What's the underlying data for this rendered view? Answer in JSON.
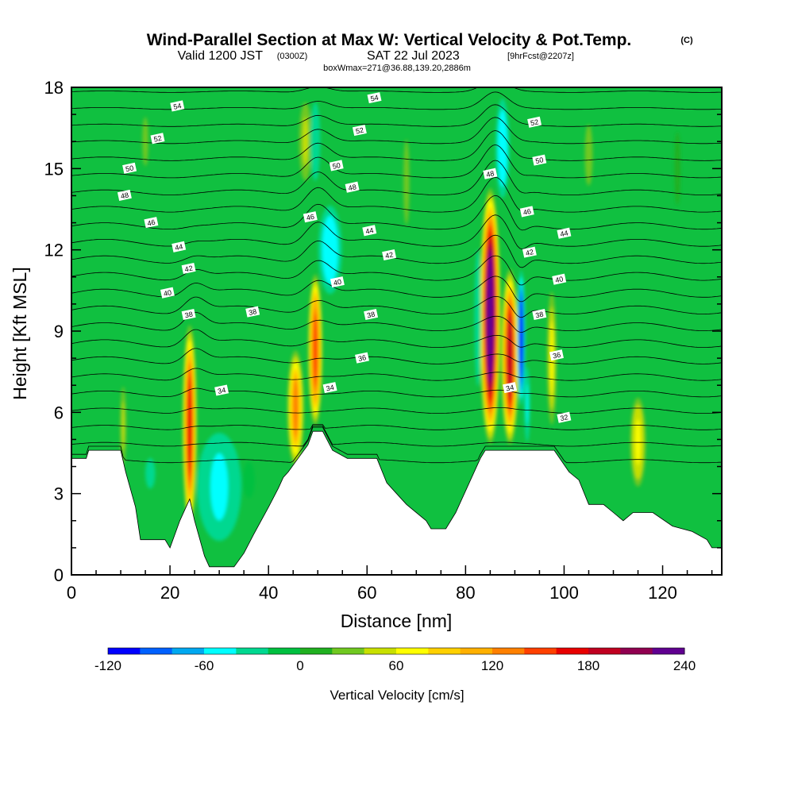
{
  "title": {
    "main": "Wind-Parallel Section at Max W: Vertical Velocity & Pot.Temp.",
    "copyright": "(C)",
    "valid_prefix": "Valid 1200 JST",
    "valid_utc": "(0300Z)",
    "valid_date": "SAT 22 Jul 2023",
    "forecast": "[9hrFcst@2207z]",
    "box_info": "boxWmax=271@36.88,139.20,2886m"
  },
  "chart_data": {
    "type": "heatmap",
    "xlabel": "Distance [nm]",
    "ylabel": "Height [Kft MSL]",
    "xlim": [
      0,
      132
    ],
    "ylim": [
      0,
      18
    ],
    "x_ticks": [
      "0",
      "20",
      "40",
      "60",
      "80",
      "100",
      "120"
    ],
    "y_ticks": [
      "0",
      "3",
      "6",
      "9",
      "12",
      "15",
      "18"
    ],
    "colorbar": {
      "label": "Vertical Velocity [cm/s]",
      "range": [
        -120,
        240
      ],
      "tick_labels": [
        "-120",
        "-60",
        "0",
        "60",
        "120",
        "180",
        "240"
      ],
      "colors": [
        "#0000ff",
        "#0060ff",
        "#00a8f0",
        "#00ffff",
        "#00d890",
        "#00c040",
        "#20b020",
        "#70c820",
        "#c8e000",
        "#ffff00",
        "#ffd000",
        "#ffb000",
        "#ff8000",
        "#ff4000",
        "#e80000",
        "#c00020",
        "#900050",
        "#600090"
      ]
    },
    "terrain": [
      {
        "x": 0,
        "h": 4.3
      },
      {
        "x": 3,
        "h": 4.3
      },
      {
        "x": 3.5,
        "h": 4.6
      },
      {
        "x": 10,
        "h": 4.6
      },
      {
        "x": 11,
        "h": 3.8
      },
      {
        "x": 13,
        "h": 2.5
      },
      {
        "x": 14,
        "h": 1.3
      },
      {
        "x": 19,
        "h": 1.3
      },
      {
        "x": 20,
        "h": 1.0
      },
      {
        "x": 22,
        "h": 2.0
      },
      {
        "x": 24,
        "h": 2.8
      },
      {
        "x": 25,
        "h": 2.0
      },
      {
        "x": 27,
        "h": 0.7
      },
      {
        "x": 28,
        "h": 0.3
      },
      {
        "x": 33,
        "h": 0.3
      },
      {
        "x": 35,
        "h": 0.8
      },
      {
        "x": 37,
        "h": 1.5
      },
      {
        "x": 40,
        "h": 2.5
      },
      {
        "x": 42,
        "h": 3.2
      },
      {
        "x": 43,
        "h": 3.6
      },
      {
        "x": 44,
        "h": 3.8
      },
      {
        "x": 46,
        "h": 4.3
      },
      {
        "x": 48,
        "h": 4.8
      },
      {
        "x": 49,
        "h": 5.3
      },
      {
        "x": 51,
        "h": 5.3
      },
      {
        "x": 53,
        "h": 4.6
      },
      {
        "x": 56,
        "h": 4.3
      },
      {
        "x": 62,
        "h": 4.3
      },
      {
        "x": 64,
        "h": 3.4
      },
      {
        "x": 66,
        "h": 3.0
      },
      {
        "x": 68,
        "h": 2.6
      },
      {
        "x": 72,
        "h": 2.0
      },
      {
        "x": 73,
        "h": 1.7
      },
      {
        "x": 76,
        "h": 1.7
      },
      {
        "x": 78,
        "h": 2.3
      },
      {
        "x": 81,
        "h": 3.5
      },
      {
        "x": 83,
        "h": 4.3
      },
      {
        "x": 84,
        "h": 4.6
      },
      {
        "x": 98,
        "h": 4.6
      },
      {
        "x": 101,
        "h": 3.8
      },
      {
        "x": 103,
        "h": 3.5
      },
      {
        "x": 105,
        "h": 2.6
      },
      {
        "x": 108,
        "h": 2.6
      },
      {
        "x": 110,
        "h": 2.3
      },
      {
        "x": 112,
        "h": 2.0
      },
      {
        "x": 114,
        "h": 2.3
      },
      {
        "x": 118,
        "h": 2.3
      },
      {
        "x": 122,
        "h": 1.8
      },
      {
        "x": 126,
        "h": 1.6
      },
      {
        "x": 129,
        "h": 1.3
      },
      {
        "x": 130,
        "h": 1.0
      },
      {
        "x": 132,
        "h": 1.0
      }
    ],
    "features": [
      {
        "x": 24,
        "z0": 1.5,
        "z1": 9.5,
        "w": 1.0,
        "v": 160
      },
      {
        "x": 10.5,
        "z0": 3.5,
        "z1": 7.5,
        "w": 0.6,
        "v": 45
      },
      {
        "x": 45.5,
        "z0": 3.8,
        "z1": 8.5,
        "w": 1.2,
        "v": 120
      },
      {
        "x": 49.5,
        "z0": 5.3,
        "z1": 11.3,
        "w": 1.0,
        "v": 150
      },
      {
        "x": 85,
        "z0": 4.6,
        "z1": 14.5,
        "w": 1.4,
        "v": 240
      },
      {
        "x": 89,
        "z0": 4.6,
        "z1": 11.5,
        "w": 1.2,
        "v": 180
      },
      {
        "x": 91.3,
        "z0": 6.0,
        "z1": 11.5,
        "w": 0.6,
        "v": -120
      },
      {
        "x": 92.5,
        "z0": 4.6,
        "z1": 8.0,
        "w": 0.5,
        "v": -50
      },
      {
        "x": 97.5,
        "z0": 5.0,
        "z1": 11.0,
        "w": 0.8,
        "v": 60
      },
      {
        "x": 115,
        "z0": 3.0,
        "z1": 6.8,
        "w": 1.2,
        "v": 70
      },
      {
        "x": 82.5,
        "z0": 6.0,
        "z1": 13.0,
        "w": 0.7,
        "v": -40
      },
      {
        "x": 87.5,
        "z0": 13.5,
        "z1": 18.0,
        "w": 1.2,
        "v": -55
      },
      {
        "x": 52.5,
        "z0": 10.0,
        "z1": 14.0,
        "w": 2.0,
        "v": -55
      },
      {
        "x": 47.5,
        "z0": 14.0,
        "z1": 18.0,
        "w": 1.3,
        "v": 40
      },
      {
        "x": 49.5,
        "z0": 14.0,
        "z1": 18.0,
        "w": 1.0,
        "v": -30
      },
      {
        "x": 30,
        "z0": 0.5,
        "z1": 6.0,
        "w": 4.5,
        "v": -45
      },
      {
        "x": 36,
        "z0": 2.0,
        "z1": 5.0,
        "w": 3.0,
        "v": -20
      },
      {
        "x": 16,
        "z0": 2.5,
        "z1": 5.0,
        "w": 2.5,
        "v": -25
      },
      {
        "x": 15,
        "z0": 14.0,
        "z1": 18.0,
        "w": 1.5,
        "v": 20
      },
      {
        "x": 68,
        "z0": 11.0,
        "z1": 18.0,
        "w": 1.5,
        "v": 20
      },
      {
        "x": 105,
        "z0": 13.0,
        "z1": 18.0,
        "w": 2.0,
        "v": 20
      },
      {
        "x": 123,
        "z0": 12.0,
        "z1": 18.0,
        "w": 1.5,
        "v": 15
      }
    ],
    "isentropes": {
      "levels_start": 32,
      "levels_end": 54,
      "step": 1,
      "labels": [
        {
          "text": "54",
          "x": 21.5,
          "z": 17.3
        },
        {
          "text": "54",
          "x": 61.5,
          "z": 17.6
        },
        {
          "text": "52",
          "x": 17.5,
          "z": 16.1
        },
        {
          "text": "52",
          "x": 58.5,
          "z": 16.4
        },
        {
          "text": "52",
          "x": 94,
          "z": 16.7
        },
        {
          "text": "50",
          "x": 11.8,
          "z": 15.0
        },
        {
          "text": "50",
          "x": 53.8,
          "z": 15.1
        },
        {
          "text": "50",
          "x": 95,
          "z": 15.3
        },
        {
          "text": "48",
          "x": 10.8,
          "z": 14.0
        },
        {
          "text": "48",
          "x": 57,
          "z": 14.3
        },
        {
          "text": "48",
          "x": 85,
          "z": 14.8
        },
        {
          "text": "46",
          "x": 16.2,
          "z": 13.0
        },
        {
          "text": "46",
          "x": 48.5,
          "z": 13.2
        },
        {
          "text": "46",
          "x": 92.5,
          "z": 13.4
        },
        {
          "text": "44",
          "x": 21.8,
          "z": 12.1
        },
        {
          "text": "44",
          "x": 60.5,
          "z": 12.7
        },
        {
          "text": "44",
          "x": 100,
          "z": 12.6
        },
        {
          "text": "42",
          "x": 23.8,
          "z": 11.3
        },
        {
          "text": "42",
          "x": 64.5,
          "z": 11.8
        },
        {
          "text": "42",
          "x": 93,
          "z": 11.9
        },
        {
          "text": "40",
          "x": 19.5,
          "z": 10.4
        },
        {
          "text": "40",
          "x": 54,
          "z": 10.8
        },
        {
          "text": "40",
          "x": 99,
          "z": 10.9
        },
        {
          "text": "38",
          "x": 23.8,
          "z": 9.6
        },
        {
          "text": "38",
          "x": 36.8,
          "z": 9.7
        },
        {
          "text": "38",
          "x": 60.8,
          "z": 9.6
        },
        {
          "text": "38",
          "x": 95,
          "z": 9.6
        },
        {
          "text": "36",
          "x": 59,
          "z": 8.0
        },
        {
          "text": "36",
          "x": 98.5,
          "z": 8.1
        },
        {
          "text": "34",
          "x": 30.5,
          "z": 6.8
        },
        {
          "text": "34",
          "x": 52.5,
          "z": 6.9
        },
        {
          "text": "34",
          "x": 89,
          "z": 6.9
        },
        {
          "text": "32",
          "x": 100,
          "z": 5.8
        }
      ]
    }
  }
}
